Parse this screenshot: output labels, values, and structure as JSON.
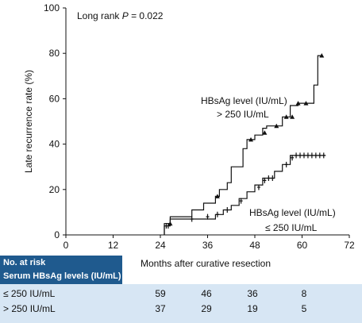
{
  "chart_data": {
    "type": "line",
    "subtype": "kaplan-meier step curve",
    "title": "",
    "annotation": "Long rank P = 0.022",
    "annotation_prefix": "Long rank ",
    "annotation_p": "P",
    "annotation_value": " = 0.022",
    "xlabel": "Months after curative resection",
    "ylabel": "Late recurrence rate (%)",
    "xlim": [
      0,
      72
    ],
    "ylim": [
      0,
      100
    ],
    "xticks": [
      "0",
      "12",
      "24",
      "36",
      "48",
      "60",
      "72"
    ],
    "yticks": [
      "0",
      "20",
      "40",
      "60",
      "80",
      "100"
    ],
    "grid": false,
    "series": [
      {
        "name": "HBsAg level (IU/mL) > 250 IU/mL",
        "label_line1": "HBsAg level (IU/mL)",
        "label_line2": "> 250  IU/mL",
        "color": "#111111",
        "steps": [
          [
            25,
            0
          ],
          [
            25,
            5
          ],
          [
            26.5,
            5
          ],
          [
            26.5,
            8
          ],
          [
            32,
            8
          ],
          [
            32,
            11
          ],
          [
            35,
            11
          ],
          [
            35,
            14
          ],
          [
            38,
            14
          ],
          [
            38,
            17
          ],
          [
            39,
            17
          ],
          [
            39,
            20
          ],
          [
            41,
            20
          ],
          [
            41,
            23
          ],
          [
            42,
            23
          ],
          [
            42,
            30
          ],
          [
            45,
            30
          ],
          [
            45,
            38
          ],
          [
            46,
            38
          ],
          [
            46,
            42
          ],
          [
            48,
            42
          ],
          [
            48,
            44
          ],
          [
            50,
            44
          ],
          [
            50,
            47
          ],
          [
            51,
            47
          ],
          [
            51,
            48
          ],
          [
            55,
            48
          ],
          [
            55,
            52
          ],
          [
            57,
            52
          ],
          [
            57,
            57
          ],
          [
            59,
            57
          ],
          [
            59,
            58
          ],
          [
            63,
            58
          ],
          [
            63,
            66
          ],
          [
            64,
            66
          ],
          [
            64,
            79
          ],
          [
            65,
            79
          ]
        ],
        "censor_marks": [
          [
            26.5,
            5
          ],
          [
            38.5,
            17
          ],
          [
            47,
            42
          ],
          [
            50.5,
            45
          ],
          [
            53.5,
            48
          ],
          [
            56,
            52
          ],
          [
            57.5,
            52
          ],
          [
            59,
            58
          ],
          [
            61,
            58
          ],
          [
            65,
            79
          ]
        ]
      },
      {
        "name": "HBsAg level (IU/mL) ≤ 250 IU/mL",
        "label_line1": "HBsAg level (IU/mL)",
        "label_line2": "≤ 250  IU/mL",
        "color": "#111111",
        "steps": [
          [
            25,
            0
          ],
          [
            25,
            4
          ],
          [
            26.5,
            4
          ],
          [
            26.5,
            7
          ],
          [
            38,
            7
          ],
          [
            38,
            9
          ],
          [
            40,
            9
          ],
          [
            40,
            11
          ],
          [
            42,
            11
          ],
          [
            42,
            13
          ],
          [
            44,
            13
          ],
          [
            44,
            16
          ],
          [
            46,
            16
          ],
          [
            46,
            19
          ],
          [
            48,
            19
          ],
          [
            48,
            22
          ],
          [
            50,
            22
          ],
          [
            50,
            25
          ],
          [
            53,
            25
          ],
          [
            53,
            28
          ],
          [
            55,
            28
          ],
          [
            55,
            31
          ],
          [
            57,
            31
          ],
          [
            57,
            35
          ],
          [
            66,
            35
          ]
        ],
        "censor_marks": [
          [
            25.5,
            4
          ],
          [
            26,
            4
          ],
          [
            32,
            7
          ],
          [
            36,
            8
          ],
          [
            38.5,
            9
          ],
          [
            41,
            11
          ],
          [
            44.5,
            15
          ],
          [
            49,
            21
          ],
          [
            50.5,
            24
          ],
          [
            51.5,
            25
          ],
          [
            52.5,
            25
          ],
          [
            56,
            31
          ],
          [
            57.5,
            34
          ],
          [
            58.5,
            35
          ],
          [
            59.5,
            35
          ],
          [
            60.5,
            35
          ],
          [
            61.5,
            35
          ],
          [
            62.5,
            35
          ],
          [
            63.5,
            35
          ],
          [
            64.5,
            35
          ],
          [
            65.5,
            35
          ]
        ]
      }
    ]
  },
  "risk_table": {
    "header_line1": "No. at risk",
    "header_line2": "Serum HBsAg levels (IU/mL)",
    "times": [
      "24",
      "36",
      "48",
      "60"
    ],
    "rows": [
      {
        "label": "≤ 250 IU/mL",
        "values": [
          "59",
          "46",
          "36",
          "8"
        ]
      },
      {
        "label": "> 250  IU/mL",
        "values": [
          "37",
          "29",
          "19",
          "5"
        ]
      }
    ]
  }
}
